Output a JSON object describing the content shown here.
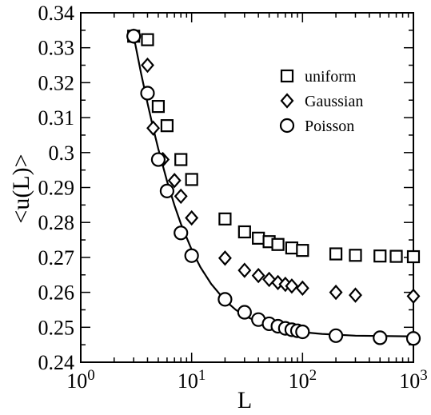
{
  "chart_data": {
    "type": "scatter",
    "title": "",
    "xlabel": "L",
    "ylabel": "<u(L)>",
    "x_scale": "log",
    "xlim": [
      1,
      1000
    ],
    "ylim": [
      0.24,
      0.34
    ],
    "grid": false,
    "legend_position": "top-right",
    "x_ticks": [
      {
        "value": 1,
        "base": "10",
        "exp": "0"
      },
      {
        "value": 10,
        "base": "10",
        "exp": "1"
      },
      {
        "value": 100,
        "base": "10",
        "exp": "2"
      },
      {
        "value": 1000,
        "base": "10",
        "exp": "3"
      }
    ],
    "y_ticks": [
      {
        "value": 0.24,
        "label": "0.24"
      },
      {
        "value": 0.25,
        "label": "0.25"
      },
      {
        "value": 0.26,
        "label": "0.26"
      },
      {
        "value": 0.27,
        "label": "0.27"
      },
      {
        "value": 0.28,
        "label": "0.28"
      },
      {
        "value": 0.29,
        "label": "0.29"
      },
      {
        "value": 0.3,
        "label": "0.3"
      },
      {
        "value": 0.31,
        "label": "0.31"
      },
      {
        "value": 0.32,
        "label": "0.32"
      },
      {
        "value": 0.33,
        "label": "0.33"
      },
      {
        "value": 0.34,
        "label": "0.34"
      }
    ],
    "series": [
      {
        "name": "uniform",
        "marker": "square",
        "x": [
          3,
          4,
          5,
          6,
          8,
          10,
          20,
          30,
          40,
          50,
          60,
          80,
          100,
          200,
          300,
          500,
          700,
          1000
        ],
        "y": [
          0.3333,
          0.3323,
          0.3132,
          0.3077,
          0.298,
          0.2923,
          0.281,
          0.2773,
          0.2755,
          0.2745,
          0.2737,
          0.2727,
          0.272,
          0.271,
          0.2706,
          0.2704,
          0.2703,
          0.2702
        ]
      },
      {
        "name": "Gaussian",
        "marker": "diamond",
        "x": [
          3,
          4,
          4.5,
          5.5,
          7,
          8,
          10,
          20,
          30,
          40,
          50,
          60,
          70,
          80,
          100,
          200,
          300,
          1000
        ],
        "y": [
          0.3333,
          0.325,
          0.307,
          0.298,
          0.292,
          0.2875,
          0.2813,
          0.2698,
          0.2663,
          0.2648,
          0.2637,
          0.2628,
          0.2623,
          0.2618,
          0.2612,
          0.26,
          0.2592,
          0.2589
        ]
      },
      {
        "name": "Poisson",
        "marker": "circle",
        "x": [
          3,
          4,
          5,
          6,
          8,
          10,
          20,
          30,
          40,
          50,
          60,
          70,
          80,
          90,
          100,
          200,
          500,
          1000
        ],
        "y": [
          0.3333,
          0.317,
          0.298,
          0.289,
          0.277,
          0.2705,
          0.258,
          0.2543,
          0.2522,
          0.251,
          0.2503,
          0.2497,
          0.2493,
          0.249,
          0.2487,
          0.2476,
          0.247,
          0.2468
        ]
      },
      {
        "name": "",
        "marker": "line",
        "x": [
          3,
          3.5,
          4,
          4.5,
          5,
          6,
          7,
          8,
          10,
          12,
          15,
          20,
          25,
          30,
          40,
          50,
          60,
          80,
          100,
          150,
          200,
          300,
          500,
          1000
        ],
        "y": [
          0.3333,
          0.3227,
          0.3141,
          0.307,
          0.3011,
          0.2918,
          0.2849,
          0.2796,
          0.2722,
          0.2672,
          0.2624,
          0.2577,
          0.255,
          0.2533,
          0.2515,
          0.2504,
          0.2498,
          0.249,
          0.2486,
          0.2481,
          0.2479,
          0.2476,
          0.2475,
          0.2474
        ]
      }
    ]
  }
}
